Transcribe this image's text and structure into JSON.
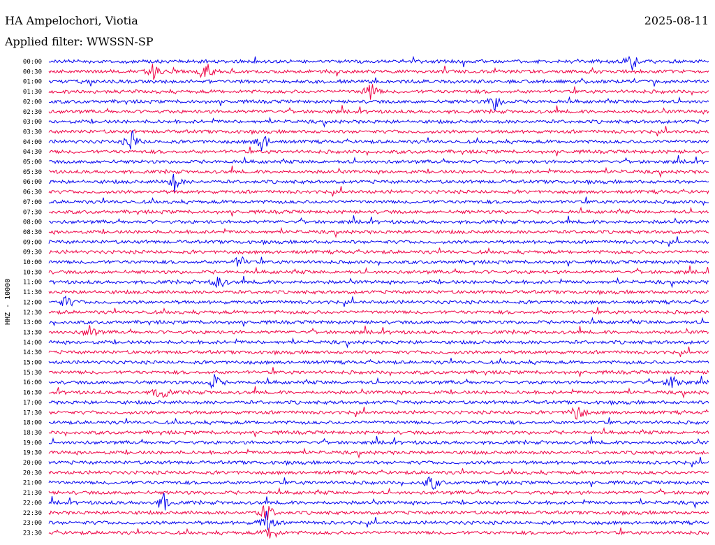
{
  "header": {
    "station": "HA Ampelochori, Viotia",
    "date": "2025-08-11",
    "filter": "Applied filter: WWSSN-SP"
  },
  "chart_data": {
    "type": "line",
    "ylabel": "HHZ - 10000",
    "rows": [
      "00:00",
      "00:30",
      "01:00",
      "01:30",
      "02:00",
      "02:30",
      "03:00",
      "03:30",
      "04:00",
      "04:30",
      "05:00",
      "05:30",
      "06:00",
      "06:30",
      "07:00",
      "07:30",
      "08:00",
      "08:30",
      "09:00",
      "09:30",
      "10:00",
      "10:30",
      "11:00",
      "11:30",
      "12:00",
      "12:30",
      "13:00",
      "13:30",
      "14:00",
      "14:30",
      "15:00",
      "15:30",
      "16:00",
      "16:30",
      "17:00",
      "17:30",
      "18:00",
      "18:30",
      "19:00",
      "19:30",
      "20:00",
      "20:30",
      "21:00",
      "21:30",
      "22:00",
      "22:30",
      "23:00",
      "23:30"
    ],
    "series_colors": [
      "#0000ee",
      "#ee0044"
    ],
    "row_minutes": 30,
    "events": [
      {
        "row": 0,
        "minute": 26.5,
        "amp": 12
      },
      {
        "row": 1,
        "minute": 4.8,
        "amp": 14
      },
      {
        "row": 1,
        "minute": 7.2,
        "amp": 12
      },
      {
        "row": 3,
        "minute": 14.6,
        "amp": 16
      },
      {
        "row": 4,
        "minute": 20.3,
        "amp": 14
      },
      {
        "row": 8,
        "minute": 3.8,
        "amp": 16
      },
      {
        "row": 8,
        "minute": 9.7,
        "amp": 15
      },
      {
        "row": 12,
        "minute": 5.7,
        "amp": 14
      },
      {
        "row": 20,
        "minute": 8.7,
        "amp": 10
      },
      {
        "row": 22,
        "minute": 7.7,
        "amp": 12
      },
      {
        "row": 24,
        "minute": 0.8,
        "amp": 10
      },
      {
        "row": 27,
        "minute": 1.9,
        "amp": 11
      },
      {
        "row": 32,
        "minute": 7.5,
        "amp": 12
      },
      {
        "row": 32,
        "minute": 28.4,
        "amp": 14
      },
      {
        "row": 33,
        "minute": 5.1,
        "amp": 15
      },
      {
        "row": 35,
        "minute": 24.0,
        "amp": 16
      },
      {
        "row": 42,
        "minute": 17.4,
        "amp": 14
      },
      {
        "row": 44,
        "minute": 5.2,
        "amp": 14
      },
      {
        "row": 45,
        "minute": 9.9,
        "amp": 16
      },
      {
        "row": 46,
        "minute": 9.9,
        "amp": 18
      },
      {
        "row": 47,
        "minute": 10.1,
        "amp": 14
      }
    ]
  }
}
